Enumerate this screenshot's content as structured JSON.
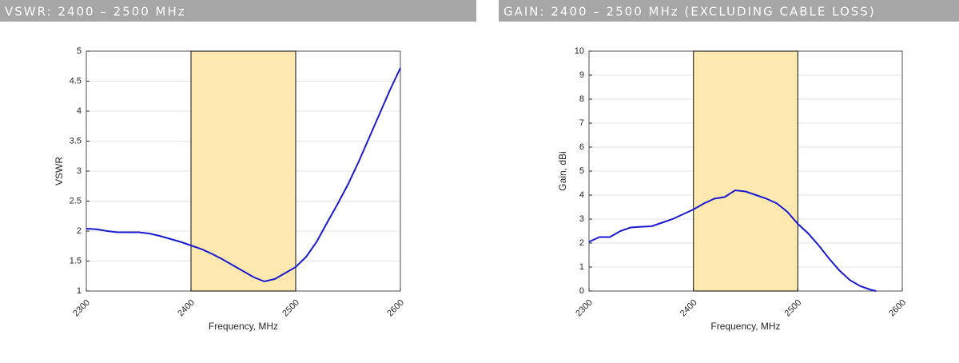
{
  "chart_data": [
    {
      "type": "line",
      "title": "VSWR: 2400 – 2500 MHz",
      "xlabel": "Frequency, MHz",
      "ylabel": "VSWR",
      "x": [
        2300,
        2310,
        2320,
        2330,
        2340,
        2350,
        2360,
        2370,
        2380,
        2390,
        2400,
        2410,
        2420,
        2430,
        2440,
        2450,
        2460,
        2470,
        2480,
        2490,
        2500,
        2510,
        2520,
        2530,
        2540,
        2550,
        2560,
        2570,
        2580,
        2590,
        2600
      ],
      "series": [
        {
          "name": "VSWR",
          "color": "#1a1ad0",
          "values": [
            2.04,
            2.03,
            2.0,
            1.98,
            1.98,
            1.98,
            1.96,
            1.92,
            1.87,
            1.82,
            1.76,
            1.7,
            1.62,
            1.53,
            1.43,
            1.33,
            1.23,
            1.16,
            1.2,
            1.3,
            1.4,
            1.57,
            1.82,
            2.14,
            2.45,
            2.78,
            3.15,
            3.55,
            3.95,
            4.35,
            4.72
          ]
        }
      ],
      "band": [
        2400,
        2500
      ],
      "band_color": "#fde9b0",
      "xlim": [
        2300,
        2600
      ],
      "xticks": [
        2300,
        2400,
        2500,
        2600
      ],
      "ylim": [
        1,
        5
      ],
      "yticks": [
        1,
        1.5,
        2,
        2.5,
        3,
        3.5,
        4,
        4.5,
        5
      ],
      "grid": true
    },
    {
      "type": "line",
      "title": "GAIN: 2400 – 2500 MHz (EXCLUDING CABLE LOSS)",
      "xlabel": "Frequency, MHz",
      "ylabel": "Gain, dBi",
      "x": [
        2300,
        2310,
        2320,
        2330,
        2340,
        2350,
        2360,
        2370,
        2380,
        2390,
        2400,
        2410,
        2420,
        2430,
        2440,
        2450,
        2460,
        2470,
        2480,
        2490,
        2500,
        2510,
        2520,
        2530,
        2540,
        2550,
        2560,
        2570,
        2575
      ],
      "series": [
        {
          "name": "Gain",
          "color": "#1a1ad0",
          "values": [
            2.05,
            2.25,
            2.25,
            2.5,
            2.65,
            2.68,
            2.7,
            2.85,
            3.0,
            3.2,
            3.4,
            3.65,
            3.85,
            3.92,
            4.2,
            4.15,
            4.0,
            3.85,
            3.65,
            3.3,
            2.8,
            2.4,
            1.9,
            1.35,
            0.85,
            0.45,
            0.2,
            0.05,
            0
          ]
        }
      ],
      "band": [
        2400,
        2500
      ],
      "band_color": "#fde9b0",
      "xlim": [
        2300,
        2600
      ],
      "xticks": [
        2300,
        2400,
        2500,
        2600
      ],
      "ylim": [
        0,
        10
      ],
      "yticks": [
        0,
        1,
        2,
        3,
        4,
        5,
        6,
        7,
        8,
        9,
        10
      ],
      "grid": true
    }
  ]
}
